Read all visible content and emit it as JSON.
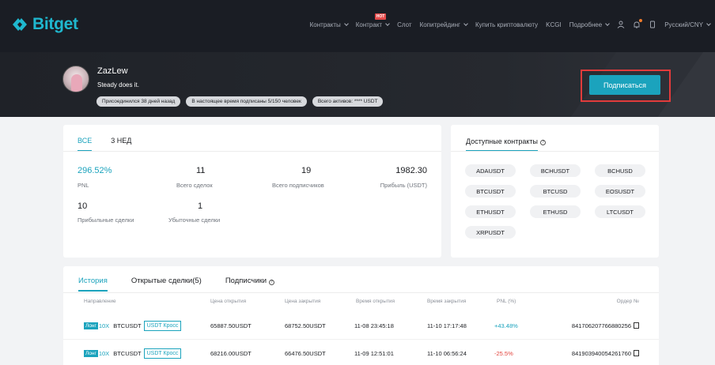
{
  "brand": {
    "name": "Bitget",
    "accent": "#1ba3bd"
  },
  "nav": {
    "items": [
      {
        "label": "Контракты",
        "dropdown": true
      },
      {
        "label": "Контракт",
        "dropdown": true,
        "badge": "HOT"
      },
      {
        "label": "Слот",
        "dropdown": false
      },
      {
        "label": "Копитрейдинг",
        "dropdown": true
      },
      {
        "label": "Купить криптовалюту",
        "dropdown": false
      },
      {
        "label": "KCGI",
        "dropdown": false
      },
      {
        "label": "Подробнее",
        "dropdown": true
      }
    ],
    "icons": [
      "user-icon",
      "bell-icon",
      "phone-icon"
    ],
    "language": "Русский/CNY"
  },
  "profile": {
    "username": "ZazLew",
    "motto": "Steady does it.",
    "pills": [
      "Присоединился 38 дней назад",
      "В настоящее время подписаны 5/150 человек",
      "Всего активов: **** USDT"
    ],
    "subscribe_label": "Подписаться"
  },
  "stats": {
    "tabs": [
      "ВСЕ",
      "3 НЕД"
    ],
    "pnl_pct": {
      "value": "296.52%",
      "label": "PNL"
    },
    "total_trades": {
      "value": "11",
      "label": "Всего сделок"
    },
    "total_subscribers": {
      "value": "19",
      "label": "Всего подписчиков"
    },
    "profit": {
      "value": "1982.30",
      "label": "Прибыль (USDT)"
    },
    "profitable_trades": {
      "value": "10",
      "label": "Прибыльные сделки"
    },
    "losing_trades": {
      "value": "1",
      "label": "Убыточные сделки"
    }
  },
  "contracts": {
    "title": "Доступные контракты",
    "items": [
      "ADAUSDT",
      "BCHUSDT",
      "BCHUSD",
      "BTCUSDT",
      "BTCUSD",
      "EOSUSDT",
      "ETHUSDT",
      "ETHUSD",
      "LTCUSDT",
      "XRPUSDT"
    ]
  },
  "history": {
    "tabs": [
      "История",
      "Открытые сделки(5)",
      "Подписчики"
    ],
    "columns": [
      "Направление",
      "Цена открытия",
      "Цена закрытия",
      "Время открытия",
      "Время закрытия",
      "PNL (%)",
      "Ордер №"
    ],
    "rows": [
      {
        "side": "Лонг",
        "leverage": "10X",
        "symbol": "BTCUSDT",
        "mode": "USDT Кросс",
        "open_price": "65887.50USDT",
        "close_price": "68752.50USDT",
        "open_time": "11-08 23:45:18",
        "close_time": "11-10 17:17:48",
        "pnl": "+43.48%",
        "pnl_color": "#1ba3bd",
        "order": "841706207766880256"
      },
      {
        "side": "Лонг",
        "leverage": "10X",
        "symbol": "BTCUSDT",
        "mode": "USDT Кросс",
        "open_price": "68216.00USDT",
        "close_price": "66476.50USDT",
        "open_time": "11-09 12:51:01",
        "close_time": "11-10 06:56:24",
        "pnl": "-25.5%",
        "pnl_color": "#e2433c",
        "order": "841903940054261760"
      }
    ]
  }
}
